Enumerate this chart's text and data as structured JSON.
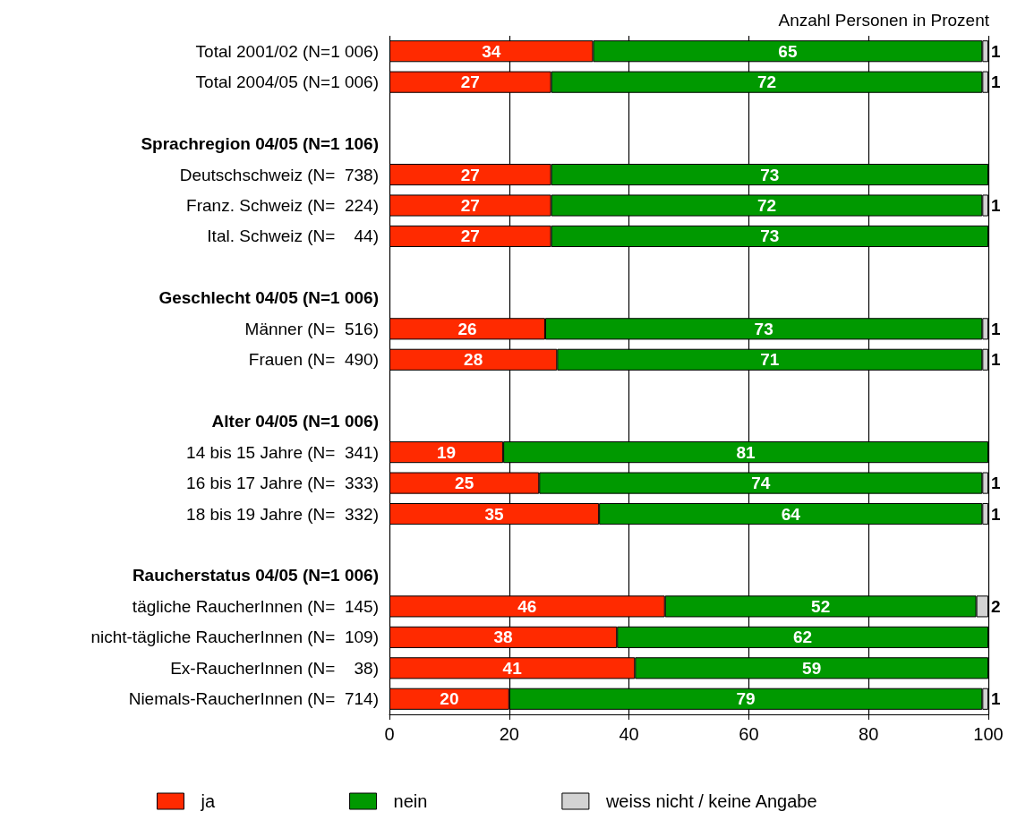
{
  "chart_data": {
    "type": "bar",
    "orientation": "horizontal",
    "stacked": true,
    "title": "Anzahl Personen in Prozent",
    "categories": [
      "Total 2001/02 (N=1 006)",
      "Total 2004/05 (N=1 006)",
      null,
      "Sprachregion 04/05 (N=1 106)",
      "Deutschschweiz (N=  738)",
      "Franz. Schweiz (N=  224)",
      "Ital. Schweiz (N=    44)",
      null,
      "Geschlecht 04/05 (N=1 006)",
      "Männer (N=  516)",
      "Frauen (N=  490)",
      null,
      "Alter 04/05 (N=1 006)",
      "14 bis 15 Jahre (N=  341)",
      "16 bis 17 Jahre (N=  333)",
      "18 bis 19 Jahre (N=  332)",
      null,
      "Raucherstatus 04/05 (N=1 006)",
      "tägliche RaucherInnen (N=  145)",
      "nicht-tägliche RaucherInnen (N=  109)",
      "Ex-RaucherInnen (N=    38)",
      "Niemals-RaucherInnen (N=  714)"
    ],
    "series": [
      {
        "name": "ja",
        "color": "#ff2a00",
        "values": [
          34,
          27,
          null,
          null,
          27,
          27,
          27,
          null,
          null,
          26,
          28,
          null,
          null,
          19,
          25,
          35,
          null,
          null,
          46,
          38,
          41,
          20
        ]
      },
      {
        "name": "nein",
        "color": "#009900",
        "values": [
          65,
          72,
          null,
          null,
          73,
          72,
          73,
          null,
          null,
          73,
          71,
          null,
          null,
          81,
          74,
          64,
          null,
          null,
          52,
          62,
          59,
          79
        ]
      },
      {
        "name": "weiss nicht / keine Angabe",
        "color": "#d3d3d3",
        "values": [
          1,
          1,
          null,
          null,
          null,
          1,
          null,
          null,
          null,
          1,
          1,
          null,
          null,
          null,
          1,
          1,
          null,
          null,
          2,
          null,
          null,
          1
        ]
      }
    ],
    "xlim": [
      0,
      100
    ],
    "xticks": [
      0,
      20,
      40,
      60,
      80,
      100
    ],
    "grid": "x",
    "legend": "bottom",
    "data_labels": true
  }
}
